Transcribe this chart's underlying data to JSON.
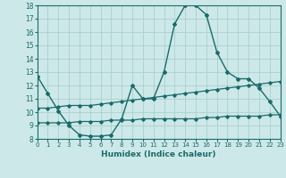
{
  "title": "",
  "xlabel": "Humidex (Indice chaleur)",
  "background_color": "#cde8e8",
  "grid_color": "#aacfcf",
  "line_color": "#1a6b6b",
  "xmin": 0,
  "xmax": 23,
  "ymin": 8,
  "ymax": 18,
  "curve1_x": [
    0,
    1,
    2,
    3,
    4,
    5,
    6,
    7,
    8,
    9,
    10,
    11,
    12,
    13,
    14,
    15,
    16,
    17,
    18,
    19,
    20,
    21,
    22,
    23
  ],
  "curve1_y": [
    12.7,
    11.4,
    10.1,
    9.0,
    8.3,
    8.2,
    8.2,
    8.3,
    9.5,
    12.0,
    11.0,
    11.0,
    13.0,
    16.6,
    18.0,
    18.0,
    17.3,
    14.5,
    13.0,
    12.5,
    12.5,
    11.8,
    10.8,
    9.7
  ],
  "curve2_x": [
    0,
    1,
    2,
    3,
    4,
    5,
    6,
    7,
    8,
    9,
    10,
    11,
    12,
    13,
    14,
    15,
    16,
    17,
    18,
    19,
    20,
    21,
    22,
    23
  ],
  "curve2_y": [
    10.3,
    10.3,
    10.4,
    10.5,
    10.5,
    10.5,
    10.6,
    10.7,
    10.8,
    10.9,
    11.0,
    11.1,
    11.2,
    11.3,
    11.4,
    11.5,
    11.6,
    11.7,
    11.8,
    11.9,
    12.0,
    12.1,
    12.2,
    12.3
  ],
  "curve3_x": [
    0,
    1,
    2,
    3,
    4,
    5,
    6,
    7,
    8,
    9,
    10,
    11,
    12,
    13,
    14,
    15,
    16,
    17,
    18,
    19,
    20,
    21,
    22,
    23
  ],
  "curve3_y": [
    9.2,
    9.2,
    9.2,
    9.2,
    9.3,
    9.3,
    9.3,
    9.4,
    9.4,
    9.4,
    9.5,
    9.5,
    9.5,
    9.5,
    9.5,
    9.5,
    9.6,
    9.6,
    9.7,
    9.7,
    9.7,
    9.7,
    9.8,
    9.8
  ],
  "xticks": [
    0,
    1,
    2,
    3,
    4,
    5,
    6,
    7,
    8,
    9,
    10,
    11,
    12,
    13,
    14,
    15,
    16,
    17,
    18,
    19,
    20,
    21,
    22,
    23
  ],
  "yticks": [
    8,
    9,
    10,
    11,
    12,
    13,
    14,
    15,
    16,
    17,
    18
  ]
}
